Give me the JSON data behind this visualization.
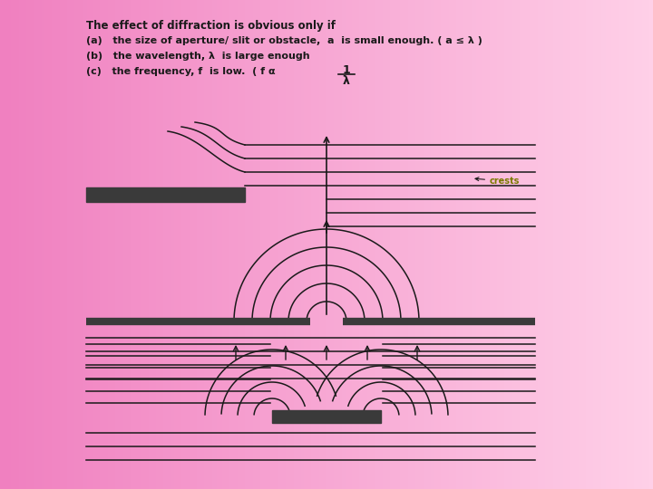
{
  "bg_color_left": "#f080c0",
  "bg_color_right": "#ffd0e8",
  "line_color": "#1a1a1a",
  "barrier_color": "#3a3a3a",
  "text_color": "#1a1a1a",
  "crests_color": "#7a7a00",
  "title_text": "The effect of diffraction is obvious only if",
  "item_a": "(a)   the size of aperture/ slit or obstacle,  a  is small enough. ( a ≤ λ )",
  "item_b": "(b)   the wavelength, λ  is large enough",
  "item_c": "(c)   the frequency, f  is low.  ( f α  ",
  "frac_num": "1",
  "frac_den": "λ"
}
